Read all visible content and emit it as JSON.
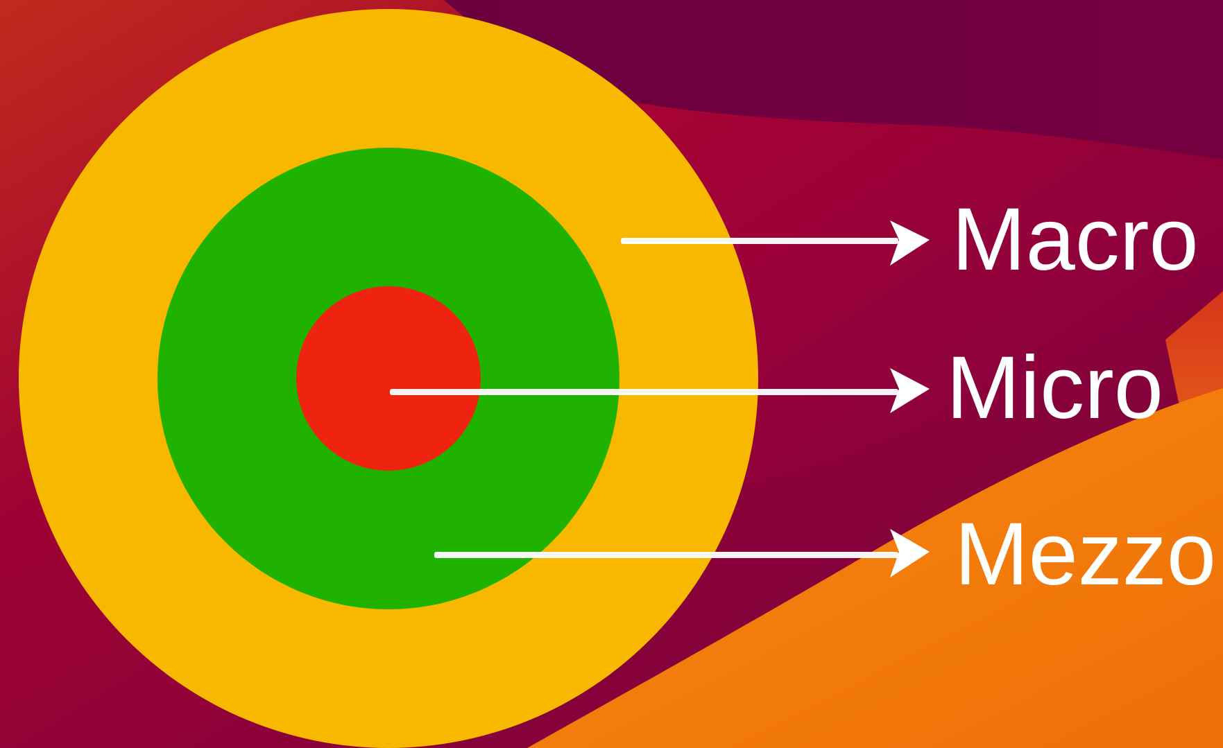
{
  "diagram": {
    "labels": {
      "outer": "Macro",
      "inner": "Micro",
      "middle": "Mezzo"
    },
    "colors": {
      "outer_ring": "#f8b800",
      "middle_ring": "#1fb200",
      "inner_circle": "#ee2310",
      "arrows": "#ffffff",
      "text": "#ffffff",
      "background_dark": "#6a0040",
      "background_red": "#a60034",
      "background_orange": "#f2780a"
    }
  }
}
